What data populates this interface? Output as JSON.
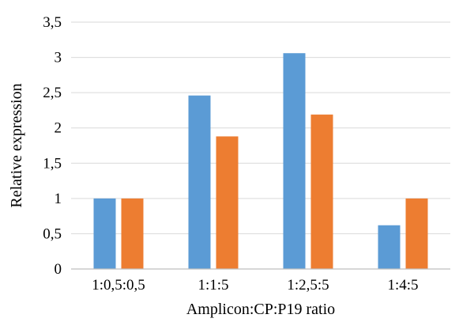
{
  "chart_data": {
    "type": "bar",
    "xlabel": "Amplicon:CP:P19 ratio",
    "ylabel": "Relative expression",
    "categories": [
      "1:0,5:0,5",
      "1:1:5",
      "1:2,5:5",
      "1:4:5"
    ],
    "series": [
      {
        "values": [
          1.0,
          2.46,
          3.06,
          0.62
        ],
        "color": "#5b9bd5"
      },
      {
        "values": [
          1.0,
          1.88,
          2.19,
          1.0
        ],
        "color": "#ed7d31"
      }
    ],
    "ylim": [
      0,
      3.5
    ],
    "yticks": [
      0,
      0.5,
      1,
      1.5,
      2,
      2.5,
      3,
      3.5
    ],
    "ytick_labels": [
      "0",
      "0,5",
      "1",
      "1,5",
      "2",
      "2,5",
      "3",
      "3,5"
    ],
    "grid": true,
    "legend": "none"
  }
}
